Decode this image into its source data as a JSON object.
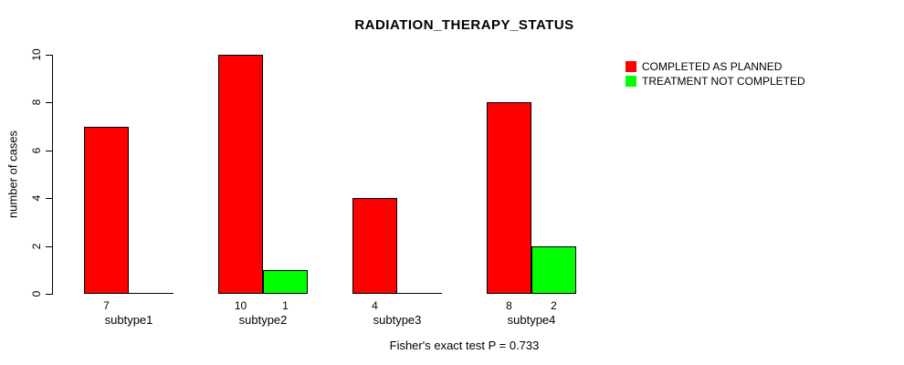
{
  "chart_data": {
    "type": "bar",
    "title": "RADIATION_THERAPY_STATUS",
    "xlabel": "",
    "ylabel": "number of cases",
    "footer": "Fisher's exact test P = 0.733",
    "categories": [
      "subtype1",
      "subtype2",
      "subtype3",
      "subtype4"
    ],
    "series": [
      {
        "name": "COMPLETED AS PLANNED",
        "color": "#FF0000",
        "values": [
          7,
          10,
          4,
          8
        ]
      },
      {
        "name": "TREATMENT NOT COMPLETED",
        "color": "#00FF00",
        "values": [
          0,
          1,
          0,
          2
        ]
      }
    ],
    "value_labels": [
      [
        "7",
        "10",
        "4",
        "8"
      ],
      [
        "",
        "1",
        "",
        "2"
      ]
    ],
    "ylim": [
      0,
      10
    ],
    "yticks": [
      0,
      2,
      4,
      6,
      8,
      10
    ],
    "grid": false,
    "legend_position": "top-right",
    "bar_border_color": "#000000",
    "background_color": "#FFFFFF",
    "text_color": "#000000"
  }
}
